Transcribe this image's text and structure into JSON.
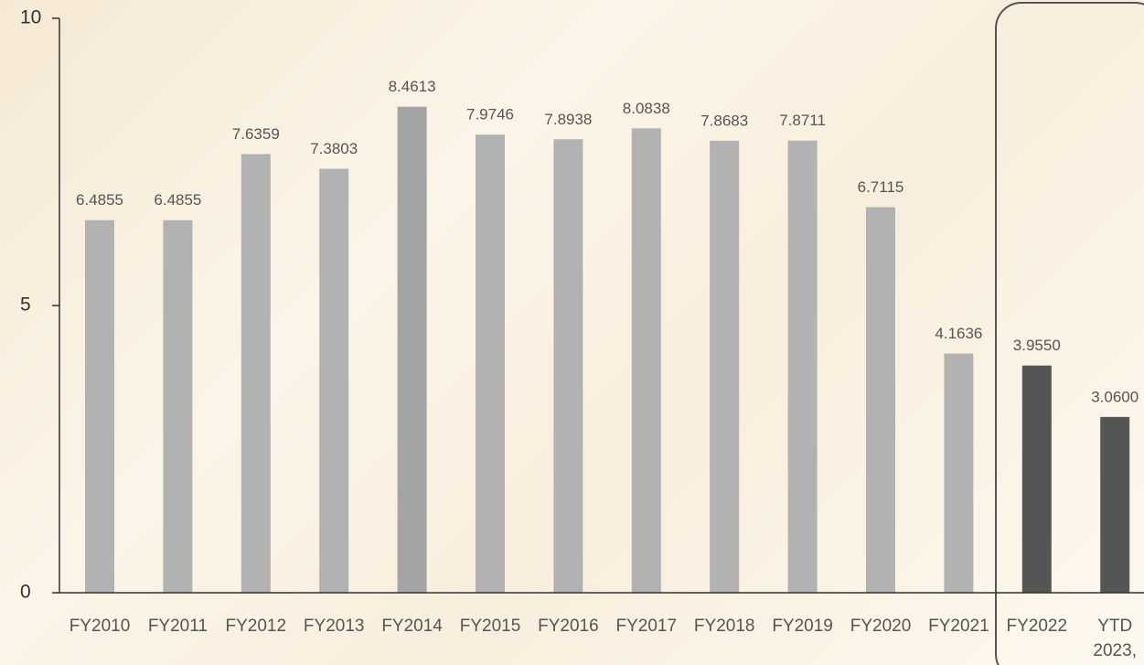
{
  "chart_data": {
    "type": "bar",
    "categories": [
      "FY2010",
      "FY2011",
      "FY2012",
      "FY2013",
      "FY2014",
      "FY2015",
      "FY2016",
      "FY2017",
      "FY2018",
      "FY2019",
      "FY2020",
      "FY2021",
      "FY2022",
      "YTD 2023,"
    ],
    "values": [
      6.4855,
      6.4855,
      7.6359,
      7.3803,
      8.4613,
      7.9746,
      7.8938,
      8.0838,
      7.8683,
      7.8711,
      6.7115,
      4.1636,
      3.955,
      3.06
    ],
    "value_labels": [
      "6.4855",
      "6.4855",
      "7.6359",
      "7.3803",
      "8.4613",
      "7.9746",
      "7.8938",
      "8.0838",
      "7.8683",
      "7.8711",
      "6.7115",
      "4.1636",
      "3.9550",
      "3.0600"
    ],
    "colors": [
      "#b2b2b2",
      "#b2b2b2",
      "#b2b2b2",
      "#b2b2b2",
      "#a4a4a4",
      "#b2b2b2",
      "#b2b2b2",
      "#b2b2b2",
      "#b2b2b2",
      "#b2b2b2",
      "#b2b2b2",
      "#b2b2b2",
      "#555555",
      "#555555"
    ],
    "ylim": [
      0,
      10
    ],
    "yticks": [
      0,
      5,
      10
    ]
  }
}
